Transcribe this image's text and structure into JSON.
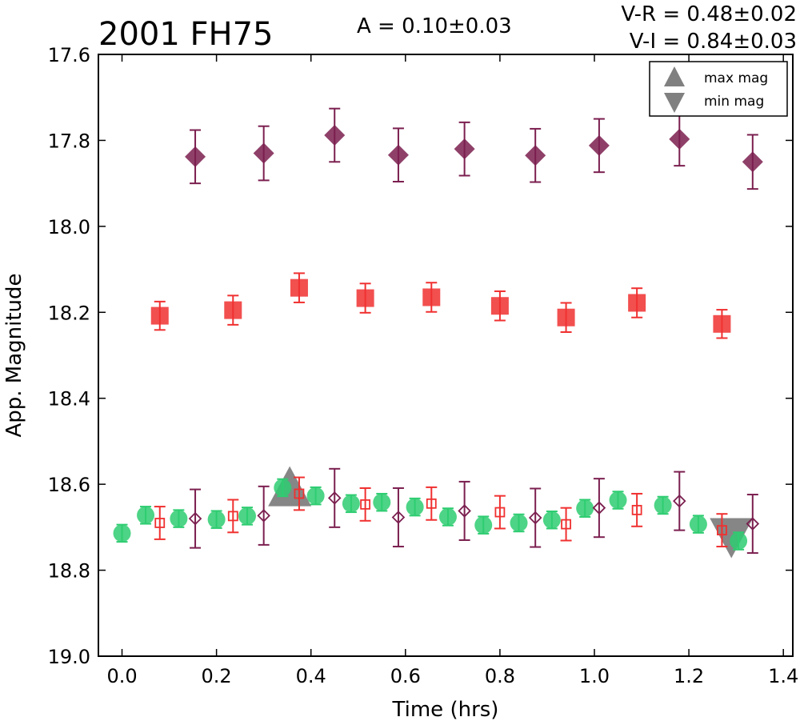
{
  "chart_data": {
    "type": "scatter",
    "title": "2001 FH75",
    "annotations": {
      "amplitude": "A  = 0.10±0.03",
      "v_r": "V-R = 0.48±0.02",
      "v_i": "V-I  = 0.84±0.03"
    },
    "xlabel": "Time (hrs)",
    "ylabel": "App. Magnitude",
    "xlim": [
      -0.05,
      1.42
    ],
    "ylim": [
      19.0,
      17.6
    ],
    "y_inverted": true,
    "xticks": [
      "0.0",
      "0.2",
      "0.4",
      "0.6",
      "0.8",
      "1.0",
      "1.2",
      "1.4"
    ],
    "yticks": [
      "17.6",
      "17.8",
      "18.0",
      "18.2",
      "18.4",
      "18.6",
      "18.8",
      "19.0"
    ],
    "legend": {
      "placement": "top-right",
      "entries": [
        {
          "label": "max mag",
          "marker": "triangle-up"
        },
        {
          "label": "min mag",
          "marker": "triangle-down"
        }
      ]
    },
    "colors": {
      "purple": "#7b1f4f",
      "red": "#f03030",
      "green": "#2ecc71",
      "gray": "#808080"
    },
    "series": [
      {
        "marker": "diamond-filled",
        "color": "#7b1f4f",
        "points": [
          {
            "x": 0.155,
            "y": 17.838,
            "err": 0.062
          },
          {
            "x": 0.3,
            "y": 17.83,
            "err": 0.063
          },
          {
            "x": 0.45,
            "y": 17.788,
            "err": 0.062
          },
          {
            "x": 0.585,
            "y": 17.834,
            "err": 0.062
          },
          {
            "x": 0.725,
            "y": 17.82,
            "err": 0.062
          },
          {
            "x": 0.875,
            "y": 17.835,
            "err": 0.062
          },
          {
            "x": 1.01,
            "y": 17.812,
            "err": 0.062
          },
          {
            "x": 1.18,
            "y": 17.797,
            "err": 0.062
          },
          {
            "x": 1.335,
            "y": 17.85,
            "err": 0.063
          }
        ]
      },
      {
        "marker": "square-filled",
        "color": "#f03030",
        "points": [
          {
            "x": 0.08,
            "y": 18.208,
            "err": 0.033
          },
          {
            "x": 0.235,
            "y": 18.195,
            "err": 0.034
          },
          {
            "x": 0.375,
            "y": 18.143,
            "err": 0.034
          },
          {
            "x": 0.515,
            "y": 18.167,
            "err": 0.034
          },
          {
            "x": 0.655,
            "y": 18.165,
            "err": 0.034
          },
          {
            "x": 0.8,
            "y": 18.185,
            "err": 0.034
          },
          {
            "x": 0.94,
            "y": 18.212,
            "err": 0.034
          },
          {
            "x": 1.09,
            "y": 18.178,
            "err": 0.034
          },
          {
            "x": 1.27,
            "y": 18.227,
            "err": 0.033
          }
        ]
      },
      {
        "marker": "circle-filled",
        "color": "#2ecc71",
        "points": [
          {
            "x": 0.0,
            "y": 18.714,
            "err": 0.02
          },
          {
            "x": 0.05,
            "y": 18.672,
            "err": 0.02
          },
          {
            "x": 0.12,
            "y": 18.68,
            "err": 0.02
          },
          {
            "x": 0.2,
            "y": 18.682,
            "err": 0.02
          },
          {
            "x": 0.265,
            "y": 18.674,
            "err": 0.02
          },
          {
            "x": 0.34,
            "y": 18.608,
            "err": 0.02
          },
          {
            "x": 0.41,
            "y": 18.627,
            "err": 0.02
          },
          {
            "x": 0.485,
            "y": 18.645,
            "err": 0.02
          },
          {
            "x": 0.55,
            "y": 18.642,
            "err": 0.02
          },
          {
            "x": 0.62,
            "y": 18.653,
            "err": 0.02
          },
          {
            "x": 0.69,
            "y": 18.676,
            "err": 0.02
          },
          {
            "x": 0.765,
            "y": 18.695,
            "err": 0.02
          },
          {
            "x": 0.84,
            "y": 18.69,
            "err": 0.02
          },
          {
            "x": 0.91,
            "y": 18.683,
            "err": 0.02
          },
          {
            "x": 0.98,
            "y": 18.656,
            "err": 0.02
          },
          {
            "x": 1.05,
            "y": 18.637,
            "err": 0.02
          },
          {
            "x": 1.145,
            "y": 18.649,
            "err": 0.02
          },
          {
            "x": 1.22,
            "y": 18.693,
            "err": 0.02
          },
          {
            "x": 1.305,
            "y": 18.732,
            "err": 0.02
          }
        ]
      },
      {
        "marker": "square-open",
        "color": "#f03030",
        "points": [
          {
            "x": 0.08,
            "y": 18.69,
            "err": 0.038
          },
          {
            "x": 0.235,
            "y": 18.674,
            "err": 0.038
          },
          {
            "x": 0.375,
            "y": 18.622,
            "err": 0.038
          },
          {
            "x": 0.515,
            "y": 18.647,
            "err": 0.038
          },
          {
            "x": 0.655,
            "y": 18.645,
            "err": 0.038
          },
          {
            "x": 0.8,
            "y": 18.665,
            "err": 0.038
          },
          {
            "x": 0.94,
            "y": 18.693,
            "err": 0.038
          },
          {
            "x": 1.09,
            "y": 18.66,
            "err": 0.038
          },
          {
            "x": 1.27,
            "y": 18.707,
            "err": 0.038
          }
        ]
      },
      {
        "marker": "diamond-open",
        "color": "#7b1f4f",
        "points": [
          {
            "x": 0.155,
            "y": 18.68,
            "err": 0.068
          },
          {
            "x": 0.3,
            "y": 18.673,
            "err": 0.068
          },
          {
            "x": 0.45,
            "y": 18.632,
            "err": 0.068
          },
          {
            "x": 0.585,
            "y": 18.677,
            "err": 0.068
          },
          {
            "x": 0.725,
            "y": 18.662,
            "err": 0.068
          },
          {
            "x": 0.875,
            "y": 18.678,
            "err": 0.068
          },
          {
            "x": 1.01,
            "y": 18.655,
            "err": 0.068
          },
          {
            "x": 1.18,
            "y": 18.639,
            "err": 0.068
          },
          {
            "x": 1.335,
            "y": 18.692,
            "err": 0.068
          }
        ]
      }
    ],
    "extrema": [
      {
        "label": "max mag",
        "marker": "triangle-up",
        "x": 0.355,
        "y": 18.625
      },
      {
        "label": "min mag",
        "marker": "triangle-down",
        "x": 1.29,
        "y": 18.705
      }
    ]
  }
}
